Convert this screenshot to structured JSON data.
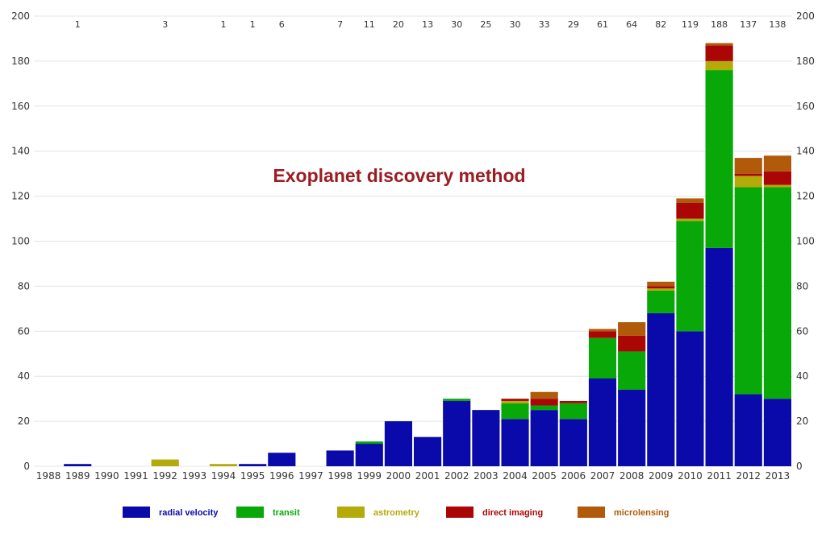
{
  "chart_data": {
    "type": "bar",
    "stacked": true,
    "title": "Exoplanet discovery method",
    "categories": [
      "1988",
      "1989",
      "1990",
      "1991",
      "1992",
      "1993",
      "1994",
      "1995",
      "1996",
      "1997",
      "1998",
      "1999",
      "2000",
      "2001",
      "2002",
      "2003",
      "2004",
      "2005",
      "2006",
      "2007",
      "2008",
      "2009",
      "2010",
      "2011",
      "2012",
      "2013"
    ],
    "totals": [
      "",
      "1",
      "",
      "",
      "3",
      "",
      "1",
      "1",
      "6",
      "",
      "7",
      "11",
      "20",
      "13",
      "30",
      "25",
      "30",
      "33",
      "29",
      "61",
      "64",
      "82",
      "119",
      "188",
      "137",
      "138"
    ],
    "series": [
      {
        "name": "radial velocity",
        "color": "#0a0aaa",
        "values": [
          0,
          1,
          0,
          0,
          0,
          0,
          0,
          1,
          6,
          0,
          7,
          10,
          20,
          13,
          29,
          25,
          21,
          25,
          21,
          39,
          34,
          68,
          60,
          97,
          32,
          30
        ]
      },
      {
        "name": "transit",
        "color": "#08a808",
        "values": [
          0,
          0,
          0,
          0,
          0,
          0,
          0,
          0,
          0,
          0,
          0,
          1,
          0,
          0,
          1,
          0,
          7,
          2,
          7,
          18,
          17,
          10,
          49,
          79,
          92,
          94
        ]
      },
      {
        "name": "astrometry",
        "color": "#b4aa0a",
        "values": [
          0,
          0,
          0,
          0,
          3,
          0,
          1,
          0,
          0,
          0,
          0,
          0,
          0,
          0,
          0,
          0,
          1,
          0,
          0,
          0,
          0,
          1,
          1,
          4,
          5,
          1
        ]
      },
      {
        "name": "direct imaging",
        "color": "#aa0606",
        "values": [
          0,
          0,
          0,
          0,
          0,
          0,
          0,
          0,
          0,
          0,
          0,
          0,
          0,
          0,
          0,
          0,
          1,
          3,
          1,
          3,
          7,
          1,
          7,
          7,
          1,
          6
        ]
      },
      {
        "name": "microlensing",
        "color": "#b05a0a",
        "values": [
          0,
          0,
          0,
          0,
          0,
          0,
          0,
          0,
          0,
          0,
          0,
          0,
          0,
          0,
          0,
          0,
          0,
          3,
          0,
          1,
          6,
          2,
          2,
          1,
          7,
          7
        ]
      }
    ],
    "ylim": [
      0,
      200
    ],
    "yticks": [
      0,
      20,
      40,
      60,
      80,
      100,
      120,
      140,
      160,
      180,
      200
    ],
    "grid": true,
    "y_axis_both_sides": true,
    "legend_position": "bottom",
    "title_color": "#9b1d22"
  }
}
